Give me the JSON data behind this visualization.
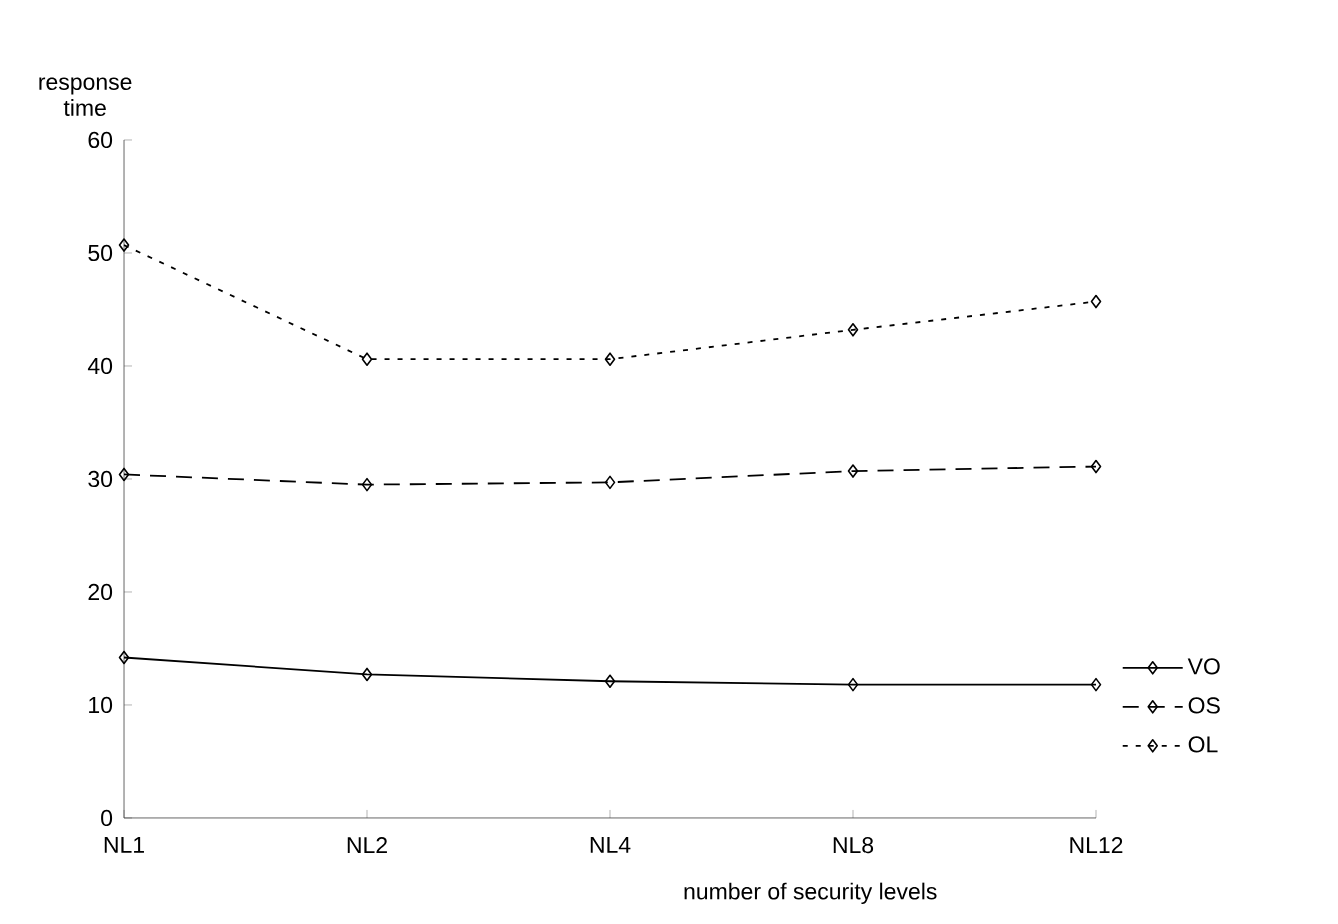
{
  "chart_data": {
    "type": "line",
    "xlabel": "number of security levels",
    "ylabel": "response time",
    "categories": [
      "NL1",
      "NL2",
      "NL4",
      "NL8",
      "NL12"
    ],
    "ylim": [
      0,
      60
    ],
    "yticks": [
      0,
      10,
      20,
      30,
      40,
      50,
      60
    ],
    "marker": "diamond",
    "legend": "right",
    "grid": false,
    "series": [
      {
        "name": "VO",
        "color": "#000000",
        "line_style": "solid",
        "values": [
          14.2,
          12.7,
          12.1,
          11.8,
          11.8
        ]
      },
      {
        "name": "OS",
        "color": "#000000",
        "line_style": "dashed",
        "values": [
          30.4,
          29.5,
          29.7,
          30.7,
          31.1
        ]
      },
      {
        "name": "OL",
        "color": "#000000",
        "line_style": "dotted",
        "values": [
          50.7,
          40.6,
          40.6,
          43.2,
          45.7
        ]
      }
    ]
  }
}
